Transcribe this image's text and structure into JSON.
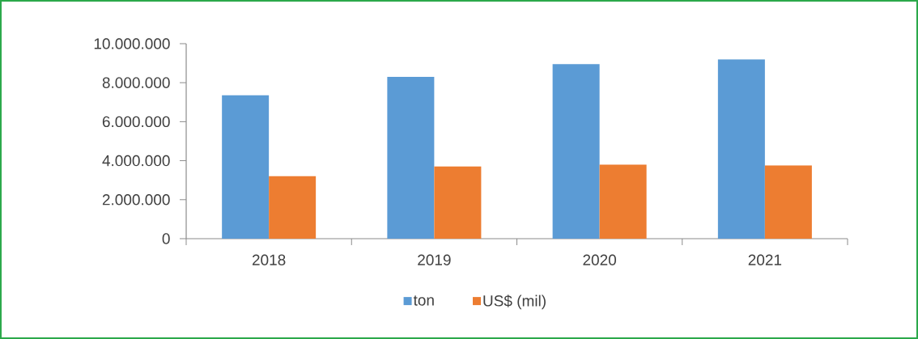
{
  "chart_data": {
    "type": "bar",
    "categories": [
      "2018",
      "2019",
      "2020",
      "2021"
    ],
    "series": [
      {
        "name": "ton",
        "color": "#5b9bd5",
        "values": [
          7350000,
          8300000,
          8950000,
          9200000
        ]
      },
      {
        "name": "US$ (mil)",
        "color": "#ed7d31",
        "values": [
          3200000,
          3700000,
          3800000,
          3750000
        ]
      }
    ],
    "ylim": [
      0,
      10000000
    ],
    "yticks": [
      0,
      {
        "value": 2000000,
        "label": "2.000.000"
      },
      {
        "value": 4000000,
        "label": "4.000.000"
      },
      {
        "value": 6000000,
        "label": "6.000.000"
      },
      {
        "value": 8000000,
        "label": "8.000.000"
      },
      {
        "value": 10000000,
        "label": "10.000.000"
      }
    ],
    "legend": "bottom"
  }
}
